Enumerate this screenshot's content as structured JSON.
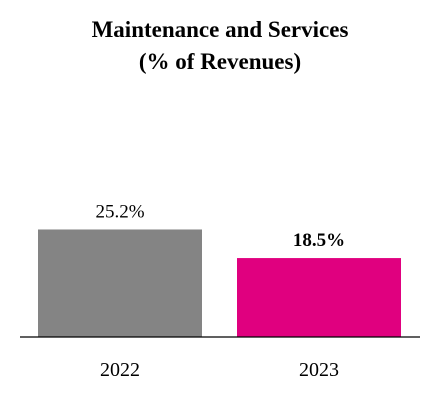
{
  "chart_data": {
    "type": "bar",
    "title": "Maintenance and Services",
    "subtitle": "(% of Revenues)",
    "categories": [
      "2022",
      "2023"
    ],
    "values": [
      25.2,
      18.5
    ],
    "data_labels": [
      "25.2%",
      "18.5%"
    ],
    "label_bold": [
      false,
      true
    ],
    "colors": [
      "#848484",
      "#e0007f"
    ],
    "ylim": [
      0,
      30
    ],
    "grid": false,
    "legend": "none",
    "xlabel": "",
    "ylabel": ""
  }
}
